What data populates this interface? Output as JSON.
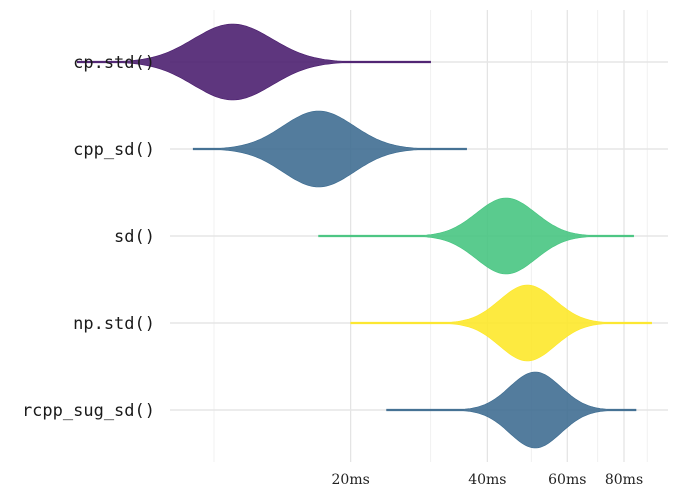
{
  "chart_data": {
    "type": "violin",
    "title": "",
    "xlabel": "",
    "ylabel": "",
    "x_scale": "log",
    "xlim": [
      8,
      100
    ],
    "x_ticks": [
      20,
      40,
      60,
      80
    ],
    "x_tick_labels": [
      "20ms",
      "40ms",
      "60ms",
      "80ms"
    ],
    "x_minor_ticks": [
      10,
      30,
      50,
      70,
      90
    ],
    "grid": true,
    "legend": "none",
    "categories": [
      "cp.std()",
      "cpp_sd()",
      "sd()",
      "np.std()",
      "rcpp_sug_sd()"
    ],
    "series": [
      {
        "category": "cp.std()",
        "color": "#481a6c",
        "min": 5.0,
        "max": 30.0,
        "peak": 11.0,
        "spread": 0.2
      },
      {
        "category": "cpp_sd()",
        "color": "#3b6a8f",
        "min": 9.0,
        "max": 36.0,
        "peak": 17.0,
        "spread": 0.18
      },
      {
        "category": "sd()",
        "color": "#43c47e",
        "min": 17.0,
        "max": 84.0,
        "peak": 44.0,
        "spread": 0.15
      },
      {
        "category": "np.std()",
        "color": "#fde725",
        "min": 20.0,
        "max": 92.0,
        "peak": 49.0,
        "spread": 0.14
      },
      {
        "category": "rcpp_sug_sd()",
        "color": "#3b6a8f",
        "min": 24.0,
        "max": 85.0,
        "peak": 51.0,
        "spread": 0.13
      }
    ]
  }
}
